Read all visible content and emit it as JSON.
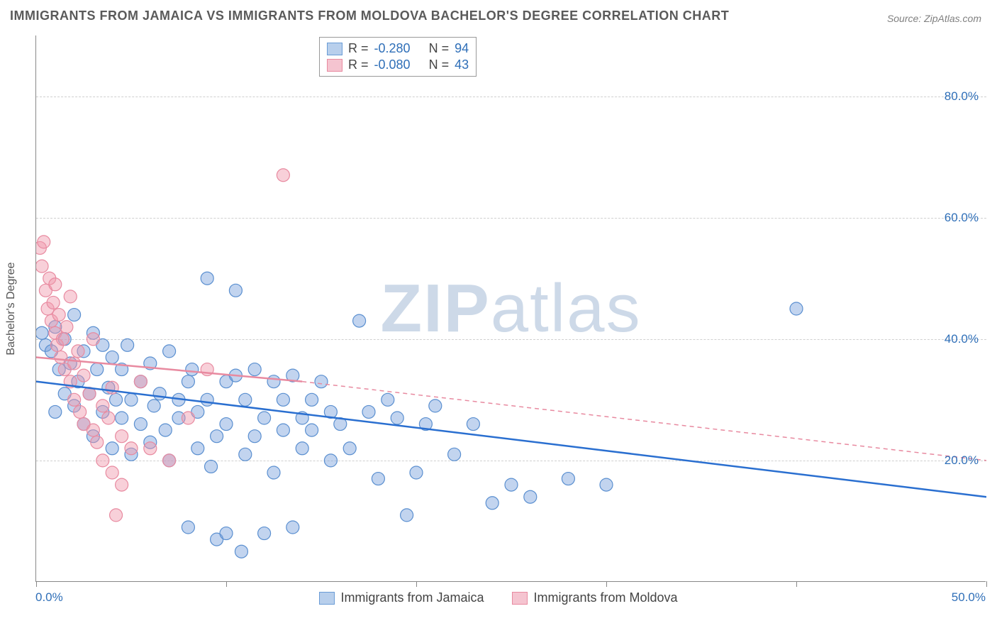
{
  "title": "IMMIGRANTS FROM JAMAICA VS IMMIGRANTS FROM MOLDOVA BACHELOR'S DEGREE CORRELATION CHART",
  "source": "Source: ZipAtlas.com",
  "watermark_a": "ZIP",
  "watermark_b": "atlas",
  "chart": {
    "type": "scatter",
    "xlabel": "",
    "ylabel": "Bachelor's Degree",
    "xlim": [
      0,
      50
    ],
    "ylim": [
      0,
      90
    ],
    "xtick_min_label": "0.0%",
    "xtick_max_label": "50.0%",
    "xticks_pos": [
      0,
      10,
      20,
      30,
      40,
      50
    ],
    "yticks": [
      {
        "v": 20,
        "label": "20.0%"
      },
      {
        "v": 40,
        "label": "40.0%"
      },
      {
        "v": 60,
        "label": "60.0%"
      },
      {
        "v": 80,
        "label": "80.0%"
      }
    ],
    "grid_color": "#d0d0d0",
    "background_color": "#ffffff",
    "marker_radius": 9,
    "marker_stroke_width": 1.2,
    "trend_line_width": 2.5,
    "series": [
      {
        "name": "Immigrants from Jamaica",
        "fill": "rgba(120,160,220,0.45)",
        "stroke": "#5a8fd0",
        "swatch_fill": "#b8cfec",
        "swatch_border": "#6a9cd6",
        "trend_color": "#2a6fd0",
        "trend_dash": "none",
        "R_label": "R =",
        "R": "-0.280",
        "N_label": "N =",
        "N": "94",
        "trend_start": {
          "x": 0,
          "y": 33
        },
        "trend_end": {
          "x": 50,
          "y": 14
        },
        "points": [
          [
            0.3,
            41
          ],
          [
            0.5,
            39
          ],
          [
            0.8,
            38
          ],
          [
            1.0,
            42
          ],
          [
            1.0,
            28
          ],
          [
            1.2,
            35
          ],
          [
            1.5,
            40
          ],
          [
            1.5,
            31
          ],
          [
            1.8,
            36
          ],
          [
            2.0,
            44
          ],
          [
            2.0,
            29
          ],
          [
            2.2,
            33
          ],
          [
            2.5,
            38
          ],
          [
            2.5,
            26
          ],
          [
            2.8,
            31
          ],
          [
            3.0,
            41
          ],
          [
            3.0,
            24
          ],
          [
            3.2,
            35
          ],
          [
            3.5,
            39
          ],
          [
            3.5,
            28
          ],
          [
            3.8,
            32
          ],
          [
            4.0,
            37
          ],
          [
            4.0,
            22
          ],
          [
            4.2,
            30
          ],
          [
            4.5,
            35
          ],
          [
            4.5,
            27
          ],
          [
            4.8,
            39
          ],
          [
            5.0,
            30
          ],
          [
            5.0,
            21
          ],
          [
            5.5,
            33
          ],
          [
            5.5,
            26
          ],
          [
            6.0,
            36
          ],
          [
            6.0,
            23
          ],
          [
            6.2,
            29
          ],
          [
            6.5,
            31
          ],
          [
            6.8,
            25
          ],
          [
            7.0,
            38
          ],
          [
            7.0,
            20
          ],
          [
            7.5,
            30
          ],
          [
            7.5,
            27
          ],
          [
            8.0,
            33
          ],
          [
            8.0,
            9
          ],
          [
            8.2,
            35
          ],
          [
            8.5,
            28
          ],
          [
            8.5,
            22
          ],
          [
            9.0,
            50
          ],
          [
            9.0,
            30
          ],
          [
            9.2,
            19
          ],
          [
            9.5,
            24
          ],
          [
            9.5,
            7
          ],
          [
            10.0,
            33
          ],
          [
            10.0,
            26
          ],
          [
            10.0,
            8
          ],
          [
            10.5,
            48
          ],
          [
            10.5,
            34
          ],
          [
            10.8,
            5
          ],
          [
            11.0,
            30
          ],
          [
            11.0,
            21
          ],
          [
            11.5,
            35
          ],
          [
            11.5,
            24
          ],
          [
            12.0,
            27
          ],
          [
            12.0,
            8
          ],
          [
            12.5,
            33
          ],
          [
            12.5,
            18
          ],
          [
            13.0,
            30
          ],
          [
            13.0,
            25
          ],
          [
            13.5,
            34
          ],
          [
            13.5,
            9
          ],
          [
            14.0,
            27
          ],
          [
            14.0,
            22
          ],
          [
            14.5,
            30
          ],
          [
            14.5,
            25
          ],
          [
            15.0,
            33
          ],
          [
            15.5,
            28
          ],
          [
            15.5,
            20
          ],
          [
            16.0,
            26
          ],
          [
            16.5,
            22
          ],
          [
            17.0,
            43
          ],
          [
            17.5,
            28
          ],
          [
            18.0,
            17
          ],
          [
            18.5,
            30
          ],
          [
            19.0,
            27
          ],
          [
            19.5,
            11
          ],
          [
            20.0,
            18
          ],
          [
            20.5,
            26
          ],
          [
            21.0,
            29
          ],
          [
            22.0,
            21
          ],
          [
            23.0,
            26
          ],
          [
            24.0,
            13
          ],
          [
            25.0,
            16
          ],
          [
            26.0,
            14
          ],
          [
            28.0,
            17
          ],
          [
            30.0,
            16
          ],
          [
            40.0,
            45
          ]
        ]
      },
      {
        "name": "Immigrants from Moldova",
        "fill": "rgba(240,150,170,0.45)",
        "stroke": "#e88aa0",
        "swatch_fill": "#f5c4d0",
        "swatch_border": "#e88aa0",
        "trend_color": "#e88aa0",
        "trend_dash": "6,5",
        "R_label": "R =",
        "R": "-0.080",
        "N_label": "N =",
        "N": "43",
        "trend_start": {
          "x": 0,
          "y": 37
        },
        "trend_end_solid": {
          "x": 14,
          "y": 33
        },
        "trend_end": {
          "x": 50,
          "y": 20
        },
        "points": [
          [
            0.2,
            55
          ],
          [
            0.3,
            52
          ],
          [
            0.4,
            56
          ],
          [
            0.5,
            48
          ],
          [
            0.6,
            45
          ],
          [
            0.7,
            50
          ],
          [
            0.8,
            43
          ],
          [
            0.9,
            46
          ],
          [
            1.0,
            41
          ],
          [
            1.0,
            49
          ],
          [
            1.1,
            39
          ],
          [
            1.2,
            44
          ],
          [
            1.3,
            37
          ],
          [
            1.4,
            40
          ],
          [
            1.5,
            35
          ],
          [
            1.6,
            42
          ],
          [
            1.8,
            33
          ],
          [
            1.8,
            47
          ],
          [
            2.0,
            36
          ],
          [
            2.0,
            30
          ],
          [
            2.2,
            38
          ],
          [
            2.3,
            28
          ],
          [
            2.5,
            34
          ],
          [
            2.5,
            26
          ],
          [
            2.8,
            31
          ],
          [
            3.0,
            40
          ],
          [
            3.0,
            25
          ],
          [
            3.2,
            23
          ],
          [
            3.5,
            29
          ],
          [
            3.5,
            20
          ],
          [
            3.8,
            27
          ],
          [
            4.0,
            32
          ],
          [
            4.0,
            18
          ],
          [
            4.2,
            11
          ],
          [
            4.5,
            24
          ],
          [
            4.5,
            16
          ],
          [
            5.0,
            22
          ],
          [
            5.5,
            33
          ],
          [
            6.0,
            22
          ],
          [
            7.0,
            20
          ],
          [
            8.0,
            27
          ],
          [
            9.0,
            35
          ],
          [
            13.0,
            67
          ]
        ]
      }
    ]
  },
  "bottom_legend": [
    {
      "label": "Immigrants from Jamaica",
      "swatch_fill": "#b8cfec",
      "swatch_border": "#6a9cd6"
    },
    {
      "label": "Immigrants from Moldova",
      "swatch_fill": "#f5c4d0",
      "swatch_border": "#e88aa0"
    }
  ]
}
